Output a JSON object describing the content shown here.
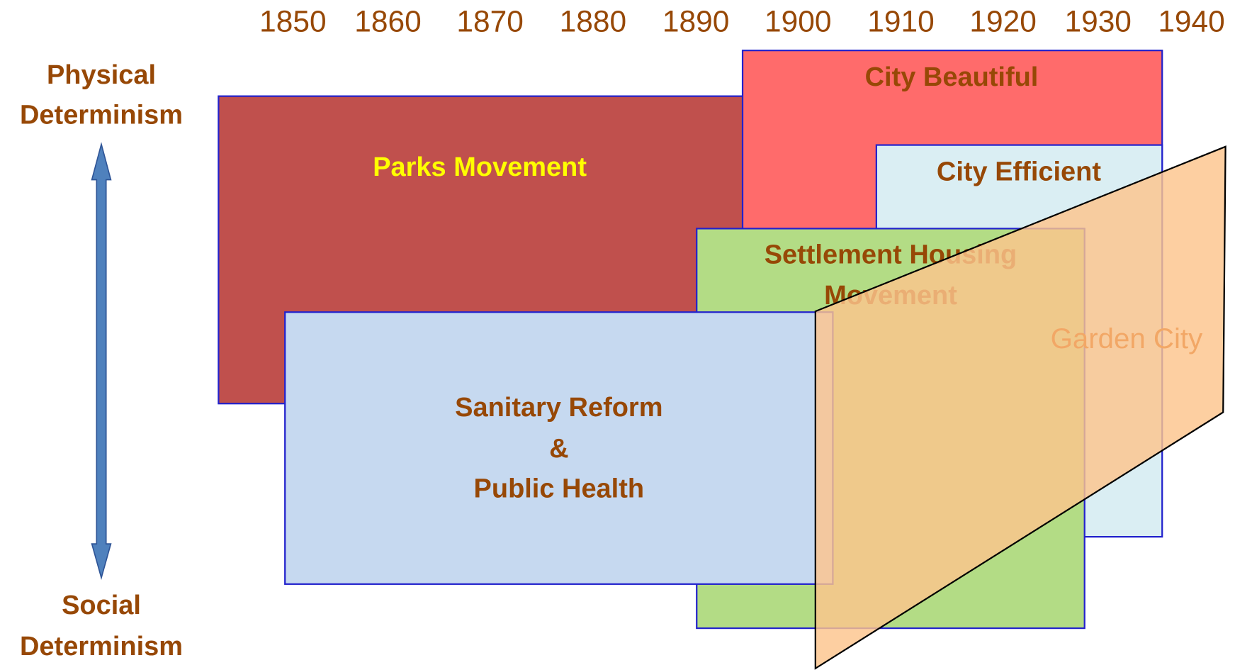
{
  "years": [
    "1850",
    "1860",
    "1870",
    "1880",
    "1890",
    "1900",
    "1910",
    "1920",
    "1930",
    "1940"
  ],
  "axis": {
    "top": [
      "Physical",
      "Determinism"
    ],
    "bottom": [
      "Social",
      "Determinism"
    ]
  },
  "boxes": [
    {
      "label": [
        "Parks Movement"
      ]
    },
    {
      "label": [
        "City Beautiful"
      ]
    },
    {
      "label": [
        "City Efficient"
      ]
    },
    {
      "label": [
        "Settlement Housing",
        "Movement"
      ]
    },
    {
      "label": [
        "Sanitary Reform",
        "&",
        "Public Health"
      ]
    },
    {
      "label": [
        "Garden City"
      ]
    }
  ]
}
